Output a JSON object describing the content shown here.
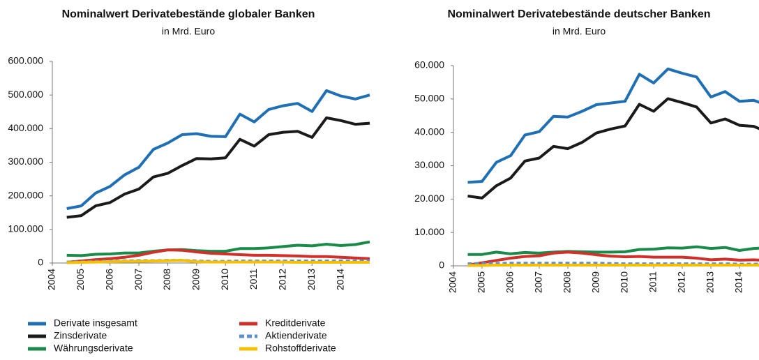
{
  "chart_data": [
    {
      "type": "line",
      "title": "Nominalwert Derivatebestände globaler Banken",
      "subtitle": "in Mrd. Euro",
      "x": [
        2004.5,
        2005,
        2005.5,
        2006,
        2006.5,
        2007,
        2007.5,
        2008,
        2008.5,
        2009,
        2009.5,
        2010,
        2010.5,
        2011,
        2011.5,
        2012,
        2012.5,
        2013,
        2013.5,
        2014,
        2014.5,
        2015
      ],
      "xlim": [
        2004,
        2015
      ],
      "xticks": [
        2004,
        2005,
        2006,
        2007,
        2008,
        2009,
        2010,
        2011,
        2012,
        2013,
        2014
      ],
      "ylim": [
        0,
        600000
      ],
      "yticks": [
        0,
        {
          "value": 100000,
          "label": "100.000"
        },
        {
          "value": 200000,
          "label": "200.000"
        },
        {
          "value": 300000,
          "label": "300.000"
        },
        {
          "value": 400000,
          "label": "400.000"
        },
        {
          "value": 500000,
          "label": "500.000"
        },
        {
          "value": 600000,
          "label": "600.000"
        }
      ],
      "series": [
        {
          "name": "Derivate insgesamt",
          "color": "#1f6fb5",
          "style": "solid",
          "values": [
            162000,
            170000,
            208000,
            228000,
            262000,
            285000,
            338000,
            357000,
            382000,
            385000,
            377000,
            376000,
            443000,
            420000,
            457000,
            468000,
            475000,
            451000,
            513000,
            497000,
            488000,
            500000
          ]
        },
        {
          "name": "Zinsderivate",
          "color": "#1a1a1a",
          "style": "solid",
          "values": [
            136000,
            141000,
            170000,
            180000,
            205000,
            220000,
            256000,
            267000,
            290000,
            311000,
            310000,
            313000,
            368000,
            348000,
            382000,
            389000,
            392000,
            374000,
            432000,
            424000,
            413000,
            416000
          ]
        },
        {
          "name": "Währungsderivate",
          "color": "#1a8a4a",
          "style": "solid",
          "values": [
            23000,
            22000,
            26000,
            27000,
            30000,
            30000,
            35000,
            39000,
            40000,
            37000,
            35000,
            35000,
            43000,
            43000,
            45000,
            49000,
            53000,
            51000,
            56000,
            52000,
            55000,
            63000
          ]
        },
        {
          "name": "Kreditderivate",
          "color": "#d0302a",
          "style": "solid",
          "values": [
            2000,
            6000,
            10000,
            13000,
            17000,
            23000,
            32000,
            39000,
            38000,
            33000,
            29000,
            27000,
            25000,
            23000,
            23000,
            22000,
            21000,
            19000,
            19000,
            17000,
            15000,
            13000
          ]
        },
        {
          "name": "Aktienderivate",
          "color": "#5b8fd0",
          "style": "dashed",
          "values": [
            3000,
            4000,
            5000,
            6000,
            6000,
            7000,
            7000,
            8000,
            8000,
            6000,
            5000,
            5000,
            6000,
            6000,
            6000,
            6000,
            6000,
            6000,
            6000,
            6000,
            6000,
            7000
          ]
        },
        {
          "name": "Rohstoffderivate",
          "color": "#f5c000",
          "style": "solid",
          "values": [
            1000,
            2000,
            3000,
            4000,
            5000,
            5000,
            6000,
            7000,
            8000,
            4000,
            3000,
            3000,
            3000,
            3000,
            3000,
            3000,
            2000,
            2000,
            2000,
            2000,
            2000,
            2000
          ]
        }
      ]
    },
    {
      "type": "line",
      "title": "Nominalwert Derivatebestände deutscher Banken",
      "subtitle": "in Mrd. Euro",
      "x": [
        2004.5,
        2005,
        2005.5,
        2006,
        2006.5,
        2007,
        2007.5,
        2008,
        2008.5,
        2009,
        2009.5,
        2010,
        2010.5,
        2011,
        2011.5,
        2012,
        2012.5,
        2013,
        2013.5,
        2014,
        2014.5,
        2015
      ],
      "xlim": [
        2004,
        2015
      ],
      "xticks": [
        2004,
        2005,
        2006,
        2007,
        2008,
        2009,
        2010,
        2011,
        2012,
        2013,
        2014
      ],
      "ylim": [
        0,
        60000
      ],
      "yticks": [
        0,
        {
          "value": 10000,
          "label": "10.000"
        },
        {
          "value": 20000,
          "label": "20.000"
        },
        {
          "value": 30000,
          "label": "30.000"
        },
        {
          "value": 40000,
          "label": "40.000"
        },
        {
          "value": 50000,
          "label": "50.000"
        },
        {
          "value": 60000,
          "label": "60.000"
        }
      ],
      "series": [
        {
          "color": "#1f6fb5",
          "style": "solid",
          "values": [
            25000,
            25300,
            31000,
            33000,
            39200,
            40200,
            44800,
            44600,
            46300,
            48300,
            48800,
            49300,
            57400,
            54800,
            59000,
            57700,
            56600,
            50600,
            52200,
            49300,
            49600,
            48000
          ]
        },
        {
          "color": "#1a1a1a",
          "style": "solid",
          "values": [
            20900,
            20300,
            24000,
            26300,
            31400,
            32300,
            35800,
            35100,
            37000,
            39800,
            41000,
            41900,
            48400,
            46300,
            50100,
            48900,
            47600,
            42800,
            44000,
            42100,
            41800,
            40000
          ]
        },
        {
          "color": "#1a8a4a",
          "style": "solid",
          "values": [
            3400,
            3400,
            4100,
            3600,
            4000,
            3800,
            4100,
            4300,
            4200,
            4100,
            4100,
            4200,
            4900,
            5000,
            5400,
            5300,
            5700,
            5200,
            5500,
            4600,
            5200,
            5400
          ]
        },
        {
          "color": "#d0302a",
          "style": "solid",
          "values": [
            200,
            900,
            1600,
            2300,
            2800,
            3000,
            3800,
            4100,
            3800,
            3300,
            2900,
            2700,
            2800,
            2600,
            2600,
            2600,
            2300,
            1800,
            2000,
            1700,
            1800,
            1600
          ]
        },
        {
          "color": "#5b8fd0",
          "style": "dashed",
          "values": [
            600,
            700,
            700,
            800,
            800,
            800,
            800,
            800,
            800,
            800,
            700,
            600,
            600,
            600,
            600,
            600,
            600,
            600,
            600,
            500,
            500,
            600
          ]
        },
        {
          "color": "#f5c000",
          "style": "solid",
          "values": [
            100,
            100,
            200,
            200,
            200,
            200,
            200,
            200,
            200,
            200,
            200,
            200,
            200,
            200,
            200,
            200,
            200,
            200,
            200,
            200,
            200,
            200
          ]
        }
      ]
    }
  ]
}
